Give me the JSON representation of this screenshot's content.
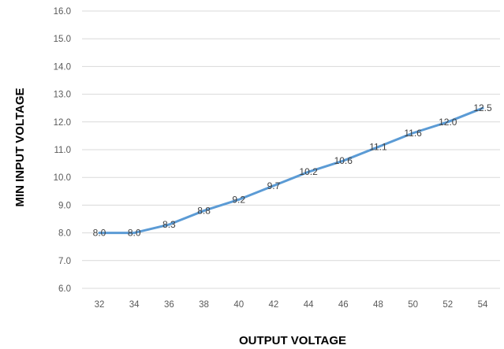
{
  "chart_data": {
    "type": "line",
    "title": "",
    "xlabel": "OUTPUT VOLTAGE",
    "ylabel": "MIN INPUT VOLTAGE",
    "categories": [
      "32",
      "34",
      "36",
      "38",
      "40",
      "42",
      "44",
      "46",
      "48",
      "50",
      "52",
      "54"
    ],
    "series": [
      {
        "values": [
          8.0,
          8.0,
          8.3,
          8.8,
          9.2,
          9.7,
          10.2,
          10.6,
          11.1,
          11.6,
          12.0,
          12.5
        ],
        "labels": [
          "8.0",
          "8.0",
          "8.3",
          "8.8",
          "9.2",
          "9.7",
          "10.2",
          "10.6",
          "11.1",
          "11.6",
          "12.0",
          "12.5"
        ],
        "color": "#5b9bd5"
      }
    ],
    "yticks": [
      "6.0",
      "7.0",
      "8.0",
      "9.0",
      "10.0",
      "11.0",
      "12.0",
      "13.0",
      "14.0",
      "15.0",
      "16.0"
    ],
    "ylim": [
      6,
      16
    ],
    "grid": true,
    "legend": "none"
  }
}
